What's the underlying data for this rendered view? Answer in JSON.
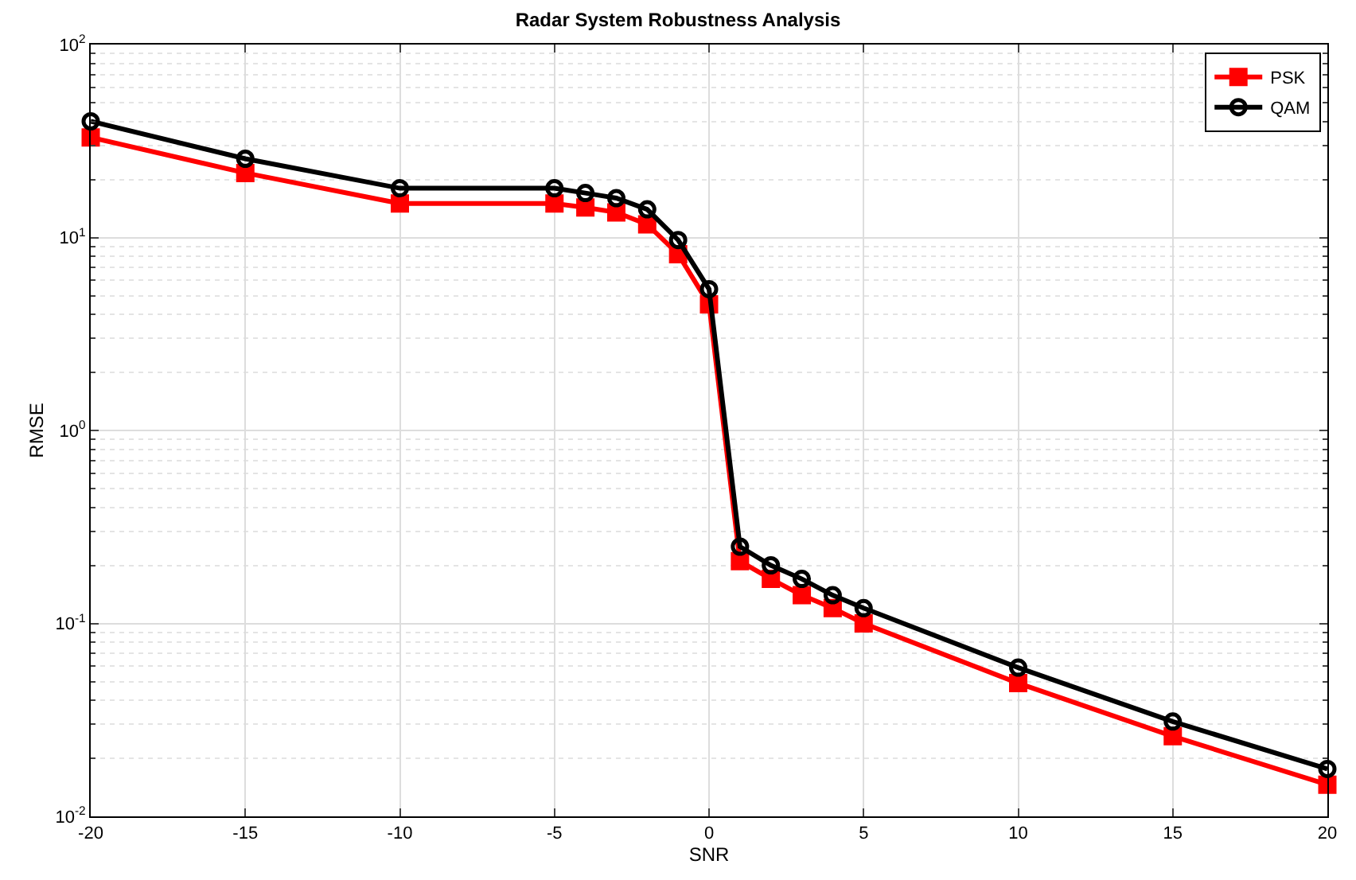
{
  "chart_data": {
    "type": "line",
    "title": "Radar System Robustness Analysis",
    "xlabel": "SNR",
    "ylabel": "RMSE",
    "x": [
      -20,
      -15,
      -10,
      -5,
      -4,
      -3,
      -2,
      -1,
      0,
      1,
      2,
      3,
      4,
      5,
      10,
      15,
      20
    ],
    "series": [
      {
        "name": "PSK",
        "color": "#ff0000",
        "marker": "square",
        "values": [
          33,
          21.6,
          15,
          15,
          14.3,
          13.5,
          11.7,
          8.2,
          4.5,
          0.21,
          0.17,
          0.14,
          0.12,
          0.1,
          0.049,
          0.026,
          0.0146
        ]
      },
      {
        "name": "QAM",
        "color": "#000000",
        "marker": "circle",
        "values": [
          40,
          25.6,
          18,
          18,
          17,
          16,
          14,
          9.7,
          5.4,
          0.25,
          0.2,
          0.17,
          0.14,
          0.12,
          0.059,
          0.031,
          0.0176
        ]
      }
    ],
    "log": "y",
    "xlim": [
      -20,
      20
    ],
    "ylim": [
      0.01,
      100
    ],
    "xticks": [
      -20,
      -15,
      -10,
      -5,
      0,
      5,
      10,
      15,
      20
    ],
    "yticks": [
      {
        "value": 0.01,
        "label": "10$^{-2}$"
      },
      {
        "value": 0.1,
        "label": "10$^{-1}$"
      },
      {
        "value": 1,
        "label": "10$^{0}$"
      },
      {
        "value": 10,
        "label": "10$^{1}$"
      },
      {
        "value": 100,
        "label": "10$^{2}$"
      }
    ],
    "grid": true,
    "legend": "top right",
    "line_style": "solid"
  }
}
